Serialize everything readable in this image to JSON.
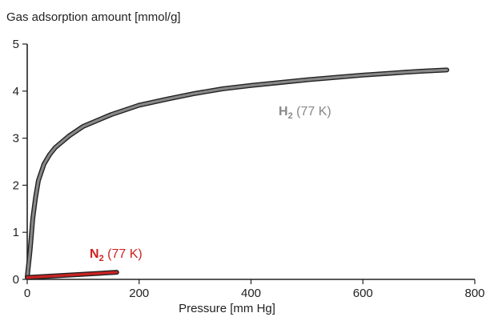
{
  "chart_data": {
    "type": "line",
    "xlabel": "Pressure [mm Hg]",
    "ylabel": "Gas adsorption amount  [mmol/g]",
    "xlim": [
      0,
      800
    ],
    "ylim": [
      0,
      5
    ],
    "x_ticks": [
      0,
      200,
      400,
      600,
      800
    ],
    "y_ticks": [
      0,
      1,
      2,
      3,
      4,
      5
    ],
    "x_tick_labels": [
      "0",
      "200",
      "400",
      "600",
      "800"
    ],
    "y_tick_labels": [
      "0",
      "1",
      "2",
      "3",
      "4",
      "5"
    ],
    "grid": false,
    "series": [
      {
        "name": "H2 (77 K)",
        "label_main": "H",
        "label_sub": "2",
        "label_rest": " (77 K)",
        "color": "#888888",
        "outline": "#222222",
        "x": [
          0,
          5,
          10,
          15,
          20,
          30,
          40,
          50,
          75,
          100,
          150,
          200,
          250,
          300,
          350,
          400,
          450,
          500,
          550,
          600,
          650,
          700,
          750
        ],
        "y": [
          0.05,
          0.6,
          1.3,
          1.75,
          2.1,
          2.45,
          2.65,
          2.8,
          3.05,
          3.25,
          3.5,
          3.7,
          3.83,
          3.95,
          4.05,
          4.12,
          4.18,
          4.24,
          4.29,
          4.34,
          4.38,
          4.42,
          4.45
        ]
      },
      {
        "name": "N2 (77 K)",
        "label_main": "N",
        "label_sub": "2",
        "label_rest": " (77 K)",
        "color": "#cc2222",
        "outline": "#222222",
        "x": [
          0,
          160
        ],
        "y": [
          0.04,
          0.15
        ]
      }
    ]
  }
}
